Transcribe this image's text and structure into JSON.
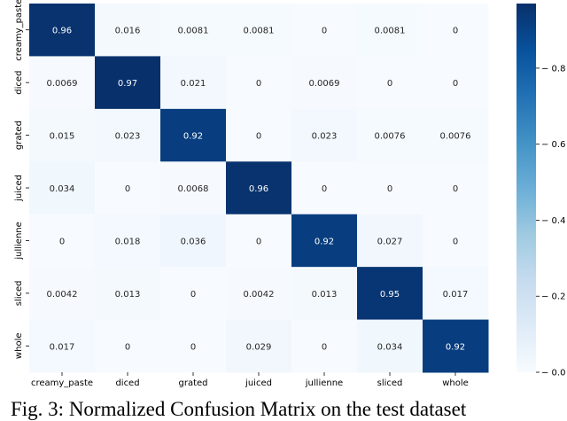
{
  "chart_data": {
    "type": "heatmap",
    "title": "",
    "xlabel": "",
    "ylabel": "",
    "x_categories": [
      "creamy_paste",
      "diced",
      "grated",
      "juiced",
      "jullienne",
      "sliced",
      "whole"
    ],
    "y_categories": [
      "creamy_paste",
      "diced",
      "grated",
      "juiced",
      "jullienne",
      "sliced",
      "whole"
    ],
    "values": [
      [
        0.96,
        0.016,
        0.0081,
        0.0081,
        0,
        0.0081,
        0
      ],
      [
        0.0069,
        0.97,
        0.021,
        0,
        0.0069,
        0,
        0
      ],
      [
        0.015,
        0.023,
        0.92,
        0,
        0.023,
        0.0076,
        0.0076
      ],
      [
        0.034,
        0,
        0.0068,
        0.96,
        0,
        0,
        0
      ],
      [
        0,
        0.018,
        0.036,
        0,
        0.92,
        0.027,
        0
      ],
      [
        0.0042,
        0.013,
        0,
        0.0042,
        0.013,
        0.95,
        0.017
      ],
      [
        0.017,
        0,
        0,
        0.029,
        0,
        0.034,
        0.92
      ]
    ],
    "cell_labels": [
      [
        "0.96",
        "0.016",
        "0.0081",
        "0.0081",
        "0",
        "0.0081",
        "0"
      ],
      [
        "0.0069",
        "0.97",
        "0.021",
        "0",
        "0.0069",
        "0",
        "0"
      ],
      [
        "0.015",
        "0.023",
        "0.92",
        "0",
        "0.023",
        "0.0076",
        "0.0076"
      ],
      [
        "0.034",
        "0",
        "0.0068",
        "0.96",
        "0",
        "0",
        "0"
      ],
      [
        "0",
        "0.018",
        "0.036",
        "0",
        "0.92",
        "0.027",
        "0"
      ],
      [
        "0.0042",
        "0.013",
        "0",
        "0.0042",
        "0.013",
        "0.95",
        "0.017"
      ],
      [
        "0.017",
        "0",
        "0",
        "0.029",
        "0",
        "0.034",
        "0.92"
      ]
    ],
    "colorbar": {
      "range": [
        0,
        0.97
      ],
      "ticks": [
        0,
        0.2,
        0.4,
        0.6,
        0.8
      ],
      "tick_labels": [
        "0.0",
        "0.2",
        "0.4",
        "0.6",
        "0.8"
      ]
    },
    "colormap": {
      "low": "#f7fbff",
      "high": "#08306b",
      "stops": [
        "#f7fbff",
        "#deebf7",
        "#c6dbef",
        "#9ecae1",
        "#6baed6",
        "#4292c6",
        "#2171b5",
        "#08519c",
        "#08306b"
      ]
    }
  },
  "caption": "Fig. 3: Normalized Confusion Matrix on the test dataset"
}
